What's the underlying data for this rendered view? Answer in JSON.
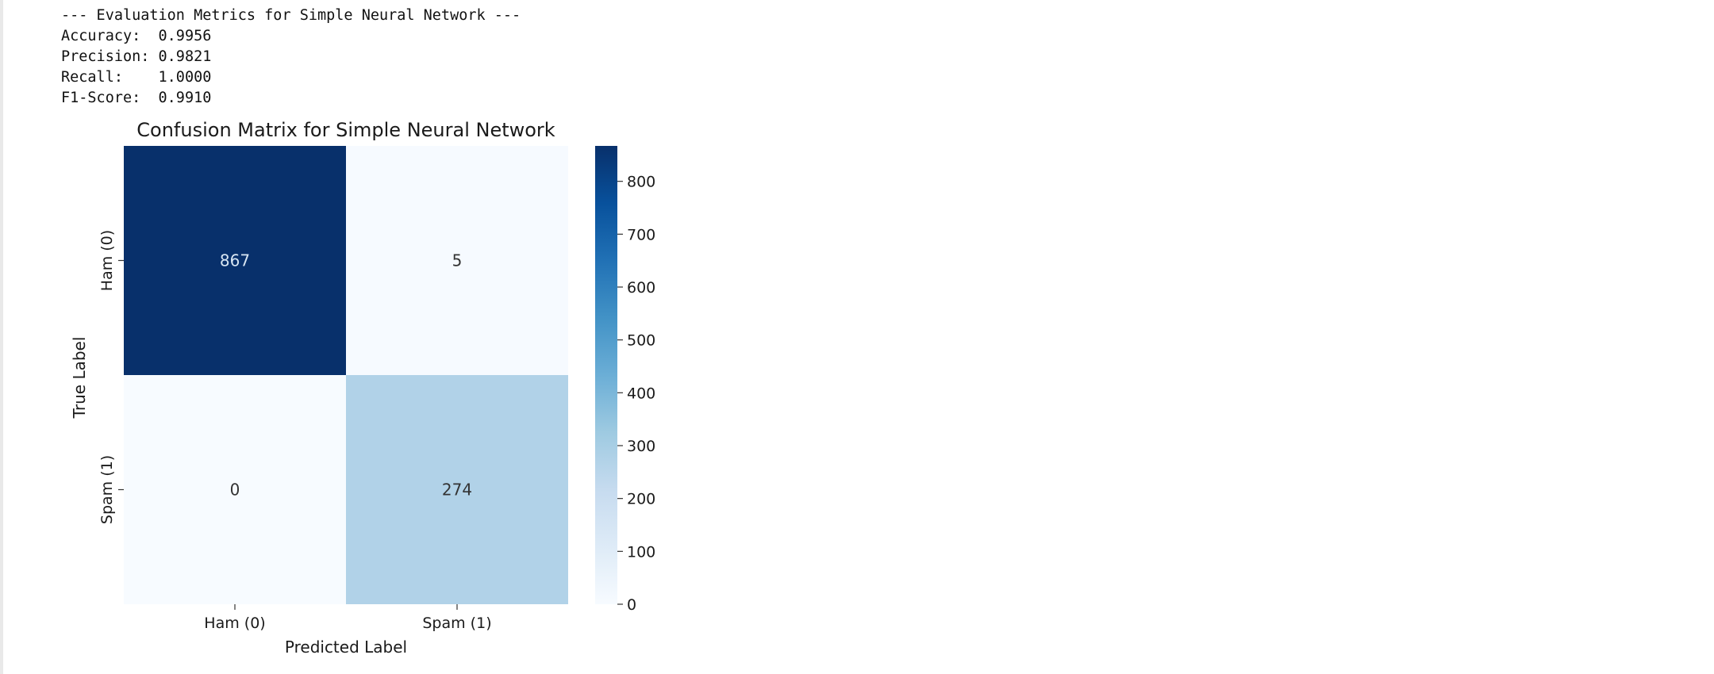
{
  "output": {
    "metrics_header": "--- Evaluation Metrics for Simple Neural Network ---",
    "metrics": [
      {
        "label": "Accuracy:  ",
        "value": "0.9956"
      },
      {
        "label": "Precision: ",
        "value": "0.9821"
      },
      {
        "label": "Recall:    ",
        "value": "1.0000"
      },
      {
        "label": "F1-Score:  ",
        "value": "0.9910"
      }
    ]
  },
  "chart_data": {
    "type": "heatmap",
    "title": "Confusion Matrix for Simple Neural Network",
    "xlabel": "Predicted Label",
    "ylabel": "True Label",
    "x_categories": [
      "Ham (0)",
      "Spam (1)"
    ],
    "y_categories": [
      "Ham (0)",
      "Spam (1)"
    ],
    "matrix": [
      [
        867,
        5
      ],
      [
        0,
        274
      ]
    ],
    "colormap": "Blues",
    "colorbar": {
      "min": 0,
      "max": 867,
      "ticks": [
        0,
        100,
        200,
        300,
        400,
        500,
        600,
        700,
        800
      ]
    },
    "cell_text_colors": {
      "dark_cell": "#d8e6f3",
      "light_cell": "#333333"
    },
    "grid": false
  }
}
